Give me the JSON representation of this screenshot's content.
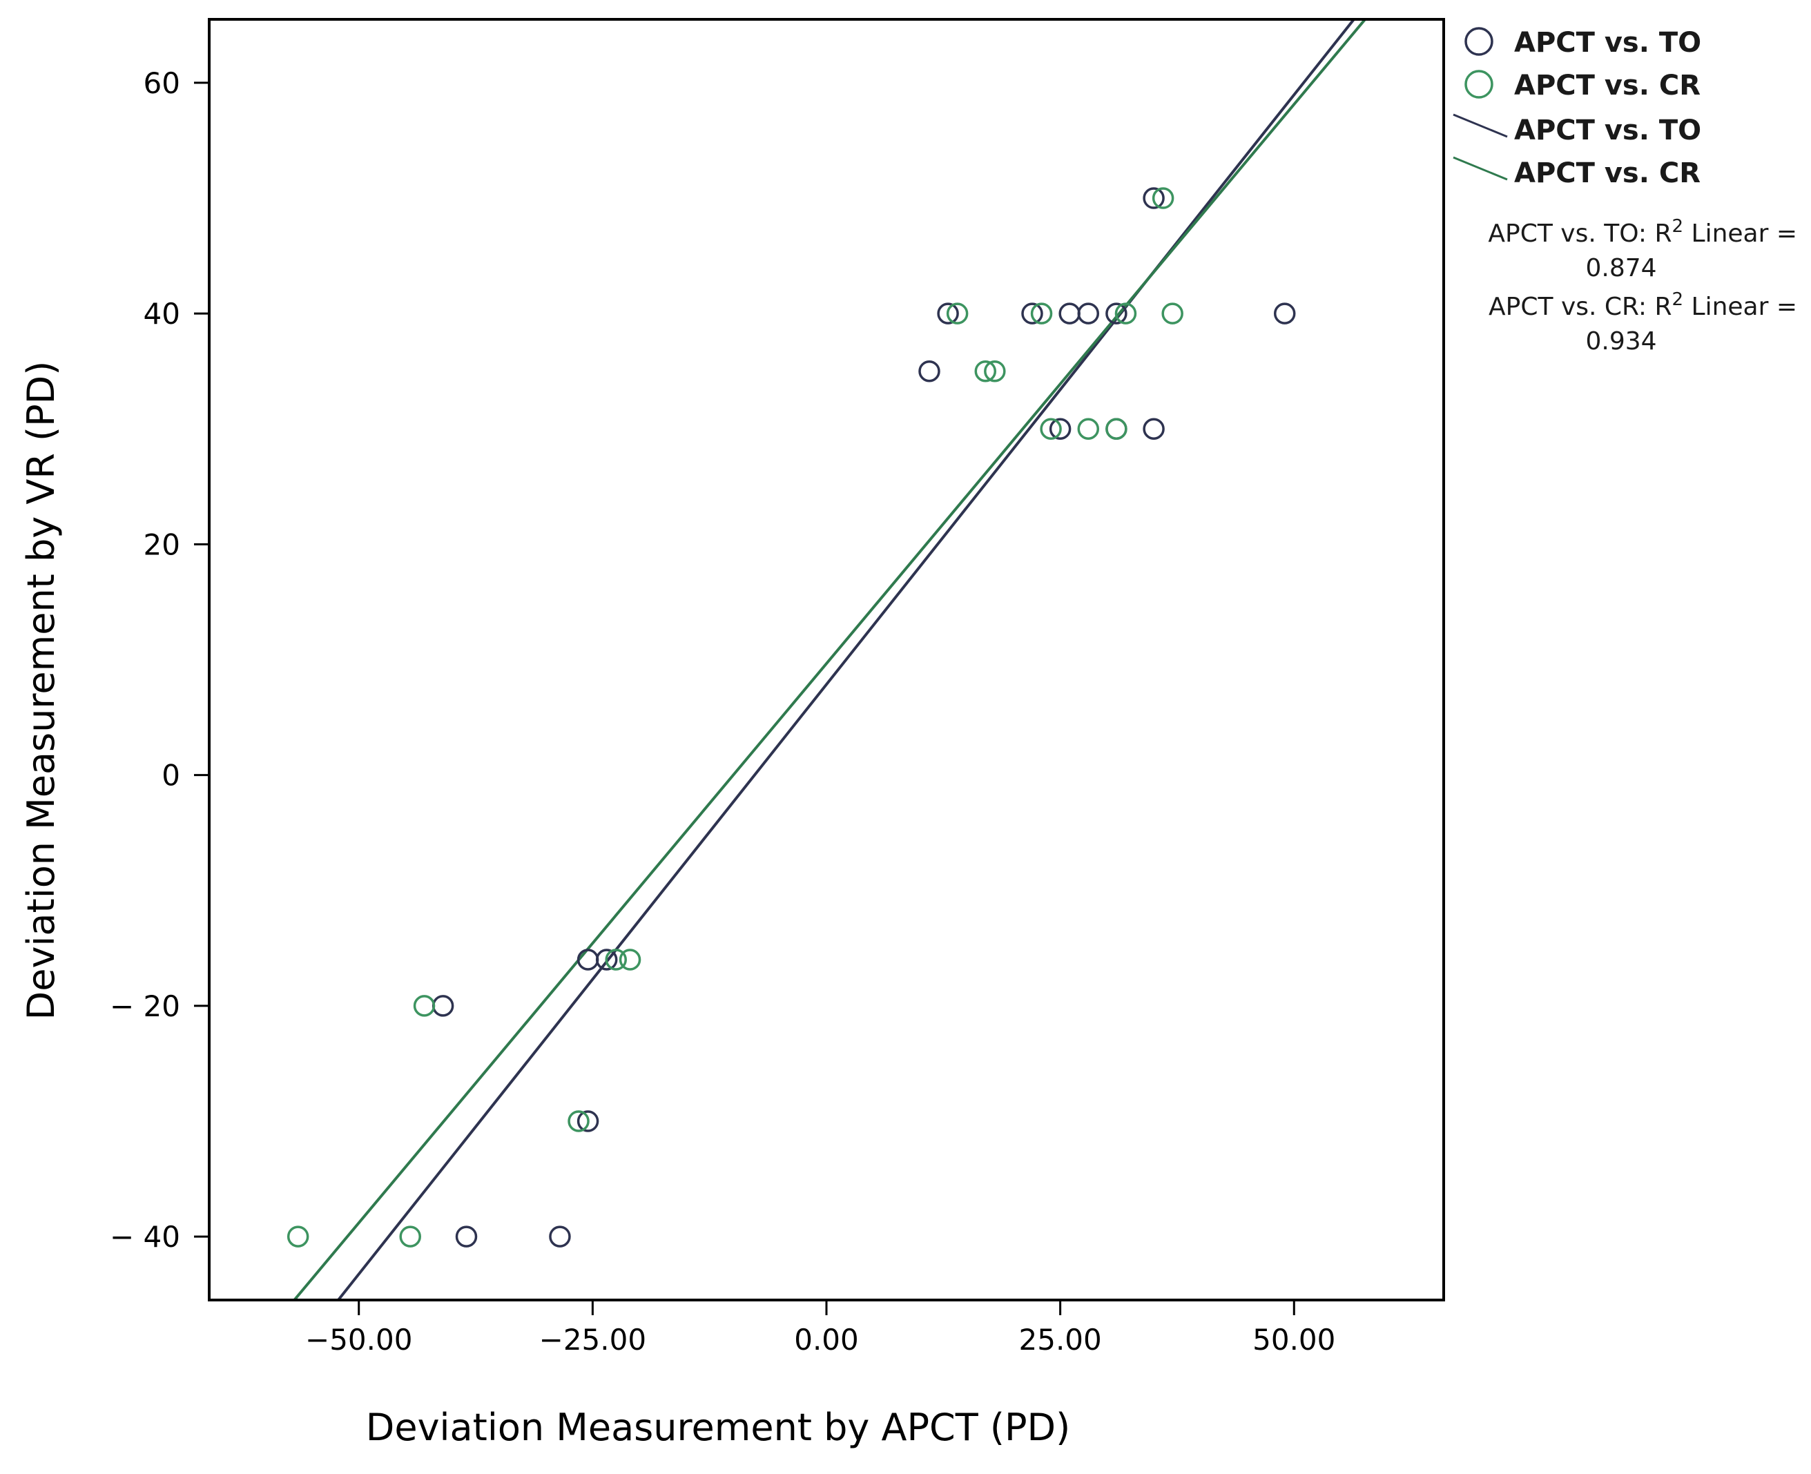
{
  "chart_data": {
    "type": "scatter",
    "xlabel": "Deviation Measurement by APCT (PD)",
    "ylabel": "Deviation Measurement by VR (PD)",
    "xlim": [
      -66,
      66
    ],
    "ylim": [
      -45.5,
      65.5
    ],
    "xticks": [
      -50,
      -25,
      0,
      25,
      50
    ],
    "xtick_labels": [
      "−50.00",
      "−25.00",
      "0.00",
      "25.00",
      "50.00"
    ],
    "yticks": [
      -40,
      -20,
      0,
      20,
      40,
      60
    ],
    "ytick_labels": [
      "− 40",
      "− 20",
      "0",
      "20",
      "40",
      "60"
    ],
    "grid": false,
    "legend_position": "top-right outside",
    "series": [
      {
        "name": "APCT vs. TO",
        "color": "#2e3350",
        "points": [
          {
            "x": -38.5,
            "y": -40
          },
          {
            "x": -28.5,
            "y": -40
          },
          {
            "x": -41,
            "y": -20
          },
          {
            "x": -25.5,
            "y": -16
          },
          {
            "x": -23.5,
            "y": -16
          },
          {
            "x": -25.5,
            "y": -30
          },
          {
            "x": 11,
            "y": 35
          },
          {
            "x": 13,
            "y": 40
          },
          {
            "x": 22,
            "y": 40
          },
          {
            "x": 26,
            "y": 40
          },
          {
            "x": 28,
            "y": 40
          },
          {
            "x": 31,
            "y": 40
          },
          {
            "x": 49,
            "y": 40
          },
          {
            "x": 25,
            "y": 30
          },
          {
            "x": 31,
            "y": 30
          },
          {
            "x": 35,
            "y": 30
          },
          {
            "x": 35,
            "y": 50
          }
        ]
      },
      {
        "name": "APCT vs. CR",
        "color": "#3d9460",
        "points": [
          {
            "x": -56.5,
            "y": -40
          },
          {
            "x": -44.5,
            "y": -40
          },
          {
            "x": -43,
            "y": -20
          },
          {
            "x": -21,
            "y": -16
          },
          {
            "x": -22.5,
            "y": -16
          },
          {
            "x": -26.5,
            "y": -30
          },
          {
            "x": 14,
            "y": 40
          },
          {
            "x": 23,
            "y": 40
          },
          {
            "x": 32,
            "y": 40
          },
          {
            "x": 37,
            "y": 40
          },
          {
            "x": 17,
            "y": 35
          },
          {
            "x": 18,
            "y": 35
          },
          {
            "x": 24,
            "y": 30
          },
          {
            "x": 28,
            "y": 30
          },
          {
            "x": 31,
            "y": 30
          },
          {
            "x": 36,
            "y": 50
          }
        ]
      }
    ],
    "fit_lines": [
      {
        "name": "APCT vs. TO",
        "color": "#2e3350",
        "x_start": -52.2,
        "y_start": -45.5,
        "x_end": 56.4,
        "y_end": 65.5
      },
      {
        "name": "APCT vs. CR",
        "color": "#2f7a4e",
        "x_start": -56.9,
        "y_start": -45.5,
        "x_end": 57.6,
        "y_end": 65.5
      }
    ],
    "legend": {
      "markers": [
        "APCT vs. TO",
        "APCT vs. CR"
      ],
      "lines": [
        "APCT vs. TO",
        "APCT vs. CR"
      ],
      "annotations": [
        {
          "line1": "APCT vs. TO: R",
          "sup": "2",
          "line1_end": " Linear =",
          "line2": "0.874"
        },
        {
          "line1": "APCT vs. CR: R",
          "sup": "2",
          "line1_end": " Linear =",
          "line2": "0.934"
        }
      ]
    }
  }
}
